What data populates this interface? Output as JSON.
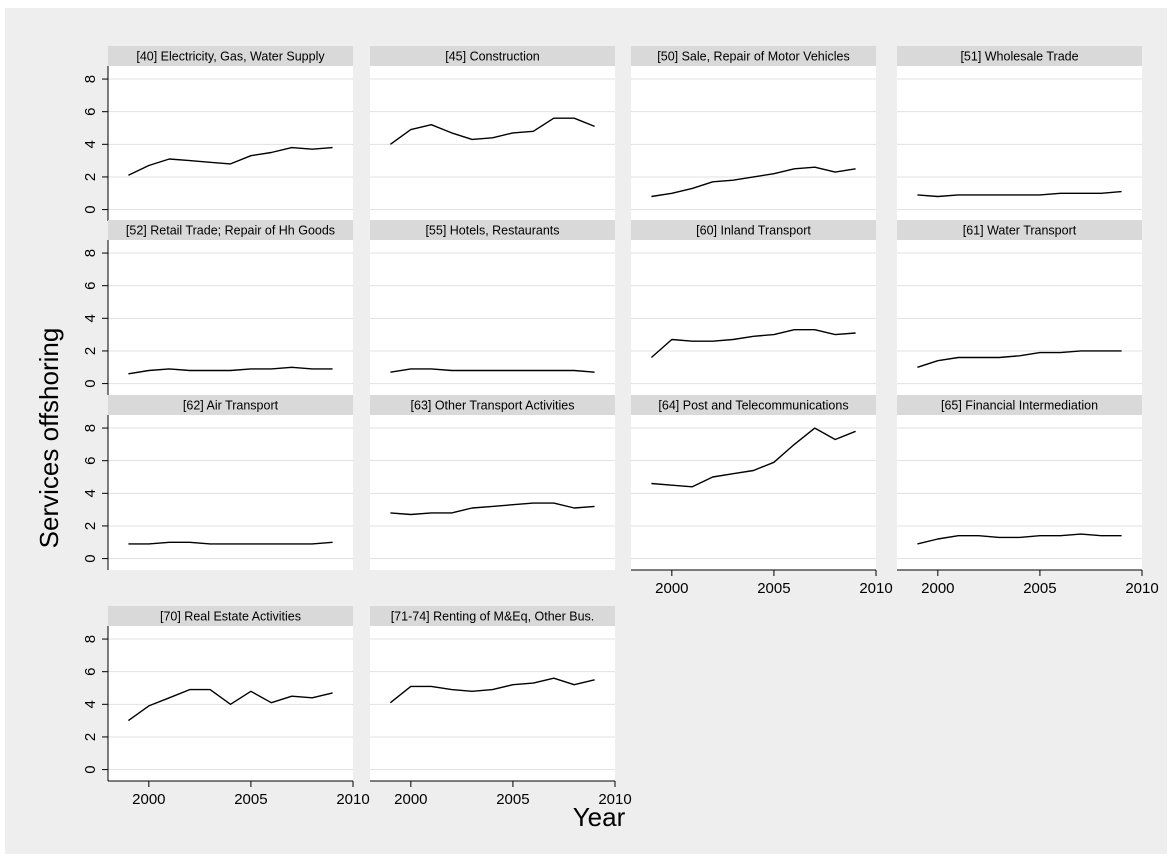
{
  "chart_data": {
    "type": "line",
    "ylabel": "Services offshoring",
    "xlabel": "Year",
    "x": [
      1999,
      2000,
      2001,
      2002,
      2003,
      2004,
      2005,
      2006,
      2007,
      2008,
      2009
    ],
    "xlim": [
      1998,
      2010
    ],
    "ylim": [
      -0.7,
      8.8
    ],
    "xticks": [
      2000,
      2005,
      2010
    ],
    "yticks": [
      0,
      2,
      4,
      6,
      8
    ],
    "grid": true,
    "colors": {
      "line": "#000000",
      "header": "#d9d9d9",
      "plot_bg": "#ffffff",
      "page_bg": "#eeeeee",
      "grid": "#e1e1e1"
    },
    "panels": [
      {
        "title": "[40] Electricity, Gas, Water Supply",
        "values": [
          2.1,
          2.7,
          3.1,
          3.0,
          2.9,
          2.8,
          3.3,
          3.5,
          3.8,
          3.7,
          3.8
        ]
      },
      {
        "title": "[45] Construction",
        "values": [
          4.0,
          4.9,
          5.2,
          4.7,
          4.3,
          4.4,
          4.7,
          4.8,
          5.6,
          5.6,
          5.1
        ]
      },
      {
        "title": "[50] Sale, Repair of Motor Vehicles",
        "values": [
          0.8,
          1.0,
          1.3,
          1.7,
          1.8,
          2.0,
          2.2,
          2.5,
          2.6,
          2.3,
          2.5
        ]
      },
      {
        "title": "[51] Wholesale Trade",
        "values": [
          0.9,
          0.8,
          0.9,
          0.9,
          0.9,
          0.9,
          0.9,
          1.0,
          1.0,
          1.0,
          1.1
        ]
      },
      {
        "title": "[52] Retail Trade; Repair of Hh Goods",
        "values": [
          0.6,
          0.8,
          0.9,
          0.8,
          0.8,
          0.8,
          0.9,
          0.9,
          1.0,
          0.9,
          0.9
        ]
      },
      {
        "title": "[55] Hotels, Restaurants",
        "values": [
          0.7,
          0.9,
          0.9,
          0.8,
          0.8,
          0.8,
          0.8,
          0.8,
          0.8,
          0.8,
          0.7
        ]
      },
      {
        "title": "[60] Inland Transport",
        "values": [
          1.6,
          2.7,
          2.6,
          2.6,
          2.7,
          2.9,
          3.0,
          3.3,
          3.3,
          3.0,
          3.1
        ]
      },
      {
        "title": "[61] Water Transport",
        "values": [
          1.0,
          1.4,
          1.6,
          1.6,
          1.6,
          1.7,
          1.9,
          1.9,
          2.0,
          2.0,
          2.0
        ]
      },
      {
        "title": "[62] Air Transport",
        "values": [
          0.9,
          0.9,
          1.0,
          1.0,
          0.9,
          0.9,
          0.9,
          0.9,
          0.9,
          0.9,
          1.0
        ]
      },
      {
        "title": "[63] Other Transport Activities",
        "values": [
          2.8,
          2.7,
          2.8,
          2.8,
          3.1,
          3.2,
          3.3,
          3.4,
          3.4,
          3.1,
          3.2
        ]
      },
      {
        "title": "[64] Post and Telecommunications",
        "values": [
          4.6,
          4.5,
          4.4,
          5.0,
          5.2,
          5.4,
          5.9,
          7.0,
          8.0,
          7.3,
          7.8
        ]
      },
      {
        "title": "[65] Financial Intermediation",
        "values": [
          0.9,
          1.2,
          1.4,
          1.4,
          1.3,
          1.3,
          1.4,
          1.4,
          1.5,
          1.4,
          1.4
        ]
      },
      {
        "title": "[70] Real Estate Activities",
        "values": [
          3.0,
          3.9,
          4.4,
          4.9,
          4.9,
          4.0,
          4.8,
          4.1,
          4.5,
          4.4,
          4.7
        ]
      },
      {
        "title": "[71-74] Renting of M&Eq, Other Bus.",
        "values": [
          4.1,
          5.1,
          5.1,
          4.9,
          4.8,
          4.9,
          5.2,
          5.3,
          5.6,
          5.2,
          5.5
        ]
      }
    ]
  }
}
